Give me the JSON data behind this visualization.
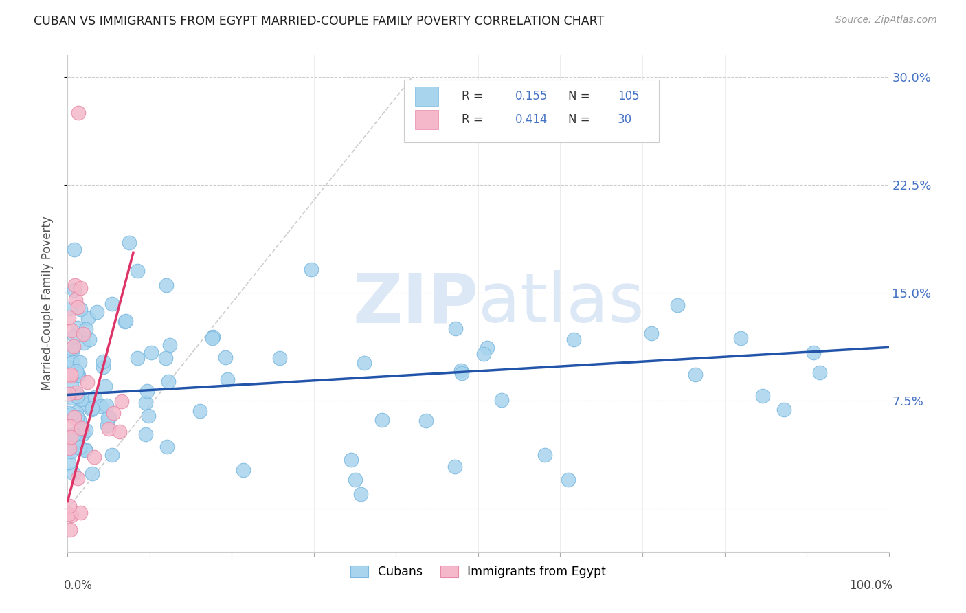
{
  "title": "CUBAN VS IMMIGRANTS FROM EGYPT MARRIED-COUPLE FAMILY POVERTY CORRELATION CHART",
  "source": "Source: ZipAtlas.com",
  "ylabel": "Married-Couple Family Poverty",
  "yticks": [
    0.0,
    0.075,
    0.15,
    0.225,
    0.3
  ],
  "ytick_labels": [
    "",
    "7.5%",
    "15.0%",
    "22.5%",
    "30.0%"
  ],
  "xlim": [
    0.0,
    1.0
  ],
  "ylim": [
    -0.03,
    0.315
  ],
  "scatter_color_blue": "#a8d4ee",
  "scatter_color_pink": "#f4b8ca",
  "scatter_edge_blue": "#7ab8e0",
  "scatter_edge_pink": "#e88aa8",
  "line_color_blue": "#2255aa",
  "line_color_pink": "#dd3366",
  "dashed_line_color": "#cccccc",
  "grid_color": "#cccccc",
  "background_color": "#ffffff",
  "title_color": "#222222",
  "axis_label_color": "#555555",
  "right_tick_color": "#4472c4",
  "watermark_color": "#dce8f5",
  "legend_box_color": "#f0f4f8",
  "legend_border_color": "#cccccc",
  "R_blue": "0.155",
  "N_blue": "105",
  "R_pink": "0.414",
  "N_pink": "30",
  "blue_line_x": [
    0.0,
    1.0
  ],
  "blue_line_y": [
    0.079,
    0.112
  ],
  "pink_line_x": [
    0.0,
    0.08
  ],
  "pink_line_y": [
    0.005,
    0.178
  ],
  "dashed_line_x": [
    0.0,
    0.42
  ],
  "dashed_line_y": [
    0.0,
    0.3
  ]
}
